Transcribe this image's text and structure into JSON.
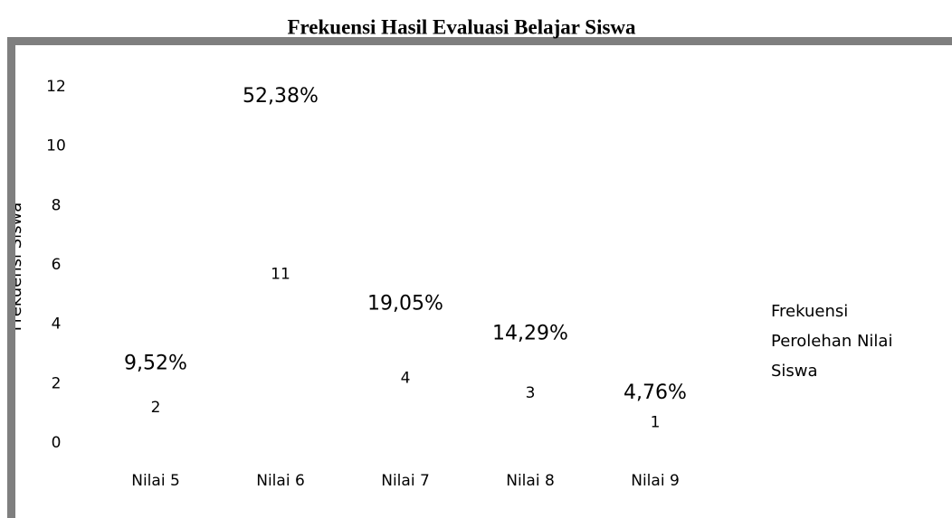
{
  "chart_data": {
    "type": "bar",
    "title": "Frekuensi Hasil Evaluasi Belajar Siswa",
    "y_label": "Frekuensi Siswa",
    "categories": [
      "Nilai 5",
      "Nilai 6",
      "Nilai 7",
      "Nilai 8",
      "Nilai 9"
    ],
    "series": [
      {
        "name": "Frekuensi Perolehan Nilai Siswa",
        "color": "#ffffff",
        "values": [
          2,
          11,
          4,
          3,
          1
        ]
      }
    ],
    "percentages": [
      9.52,
      52.38,
      19.05,
      14.29,
      4.76
    ],
    "percentage_labels": [
      "9,52%",
      "52,38%",
      "19,05%",
      "14,29%",
      "4,76%"
    ],
    "ylim": [
      0,
      12
    ],
    "yticks": [
      0,
      2,
      4,
      6,
      8,
      10,
      12
    ],
    "grid": false
  }
}
